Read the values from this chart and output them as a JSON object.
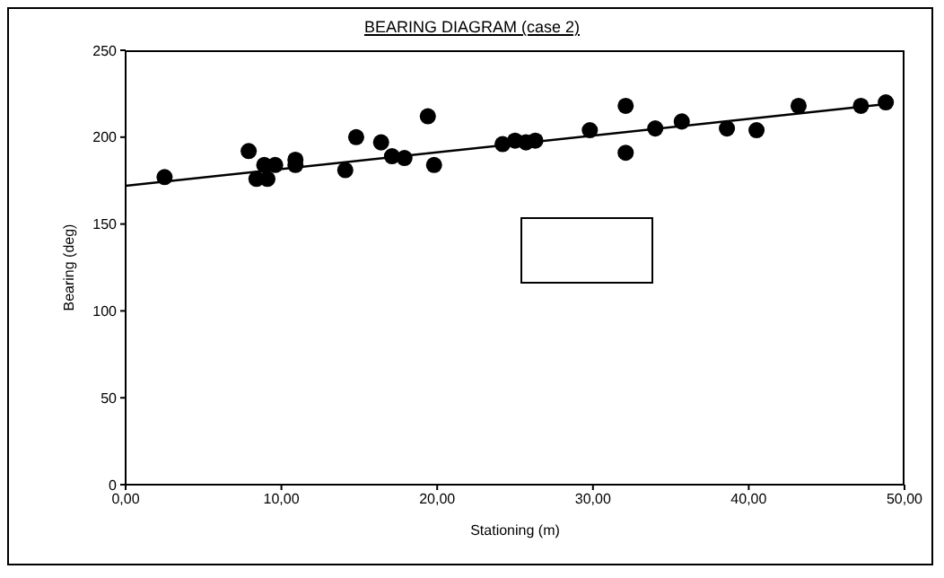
{
  "chart_data": {
    "type": "scatter",
    "title": "BEARING DIAGRAM (case 2)",
    "xlabel": "Stationing (m)",
    "ylabel": "Bearing (deg)",
    "xlim": [
      0,
      50
    ],
    "xticks": [
      {
        "value": 0,
        "label": "0,00"
      },
      {
        "value": 10,
        "label": "10,00"
      },
      {
        "value": 20,
        "label": "20,00"
      },
      {
        "value": 30,
        "label": "30,00"
      },
      {
        "value": 40,
        "label": "40,00"
      },
      {
        "value": 50,
        "label": "50,00"
      }
    ],
    "ylim": [
      0,
      250
    ],
    "yticks": [
      0,
      50,
      100,
      150,
      200,
      250
    ],
    "series": [
      {
        "marker": "circle",
        "color": "#000000",
        "x": [
          2.5,
          7.9,
          8.4,
          8.9,
          9.1,
          9.6,
          10.9,
          10.9,
          14.1,
          14.8,
          16.4,
          17.1,
          17.9,
          19.4,
          19.8,
          24.2,
          25.0,
          25.7,
          26.3,
          29.8,
          32.1,
          32.1,
          34.0,
          35.7,
          38.6,
          40.5,
          43.2,
          47.2,
          48.8
        ],
        "values": [
          177,
          192,
          176,
          184,
          176,
          184,
          187,
          184,
          181,
          200,
          197,
          189,
          188,
          212,
          184,
          196,
          198,
          197,
          198,
          204,
          218,
          191,
          205,
          209,
          205,
          204,
          218,
          218,
          220
        ]
      },
      {
        "type": "line",
        "color": "#000000",
        "x": [
          0,
          48.8
        ],
        "values": [
          172,
          219
        ]
      }
    ]
  }
}
